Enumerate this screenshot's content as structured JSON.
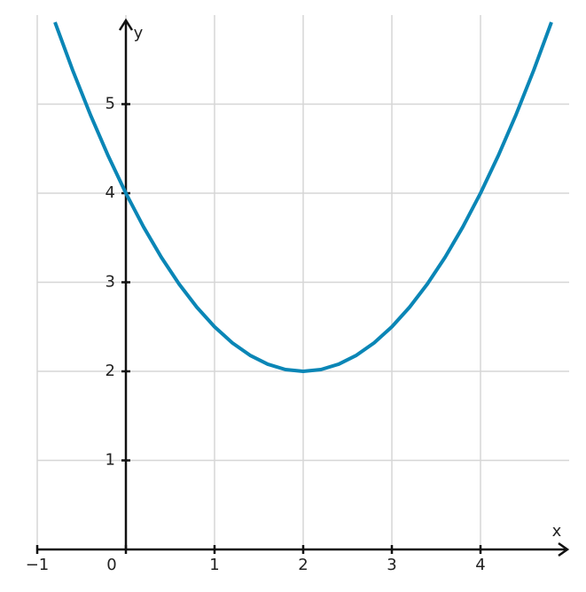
{
  "chart_data": {
    "type": "line",
    "x_label": "x",
    "y_label": "y",
    "x": [
      -0.8,
      -0.6,
      -0.4,
      -0.2,
      0,
      0.2,
      0.4,
      0.6,
      0.8,
      1.0,
      1.2,
      1.4,
      1.6,
      1.8,
      2.0,
      2.2,
      2.4,
      2.6,
      2.8,
      3.0,
      3.2,
      3.4,
      3.6,
      3.8,
      4.0,
      4.2,
      4.4,
      4.6,
      4.8
    ],
    "series": [
      {
        "color": "#0a86b6",
        "values": [
          5.92,
          5.38,
          4.88,
          4.42,
          4,
          3.62,
          3.28,
          2.98,
          2.72,
          2.5,
          2.32,
          2.18,
          2.08,
          2.02,
          2,
          2.02,
          2.08,
          2.18,
          2.32,
          2.5,
          2.72,
          2.98,
          3.28,
          3.62,
          4,
          4.42,
          4.88,
          5.38,
          5.92
        ]
      }
    ],
    "xlim": [
      -1,
      5
    ],
    "ylim": [
      0,
      6
    ],
    "xticks": [
      {
        "value": -1,
        "label": "−1"
      },
      0,
      1,
      2,
      3,
      4
    ],
    "yticks": [
      1,
      2,
      3,
      4,
      5
    ],
    "grid": true
  }
}
